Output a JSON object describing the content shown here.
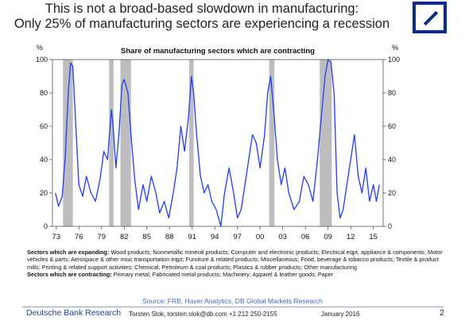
{
  "header": {
    "title_line1": "This is not a broad-based slowdown in manufacturing:",
    "title_line2": "Only 25% of manufacturing sectors are experiencing a recession"
  },
  "chart_data": {
    "type": "line",
    "title": "Share of manufacturing sectors which are contracting",
    "y_unit_left": "%",
    "y_unit_right": "%",
    "ylim": [
      0,
      100
    ],
    "yticks": [
      0,
      20,
      40,
      60,
      80,
      100
    ],
    "xlim": [
      1972.5,
      2016.3
    ],
    "xticks": [
      "73",
      "76",
      "79",
      "82",
      "85",
      "88",
      "91",
      "94",
      "97",
      "00",
      "03",
      "06",
      "09",
      "12",
      "15"
    ],
    "series_color": "#1a3cff",
    "recession_color": "#bdbdbd",
    "recessions": [
      [
        1973.9,
        1975.2
      ],
      [
        1980.0,
        1980.6
      ],
      [
        1981.5,
        1982.9
      ],
      [
        1990.6,
        1991.2
      ],
      [
        2001.2,
        2001.9
      ],
      [
        2007.9,
        2009.5
      ]
    ],
    "x": [
      1972.9,
      1973.3,
      1973.8,
      1974.2,
      1974.6,
      1974.9,
      1975.2,
      1975.6,
      1976.0,
      1976.5,
      1977.0,
      1977.6,
      1978.2,
      1978.8,
      1979.3,
      1979.8,
      1980.3,
      1980.5,
      1980.9,
      1981.3,
      1981.7,
      1982.0,
      1982.5,
      1982.9,
      1983.4,
      1983.9,
      1984.5,
      1985.0,
      1985.6,
      1986.2,
      1986.7,
      1987.3,
      1987.9,
      1988.5,
      1989.0,
      1989.5,
      1990.0,
      1990.5,
      1990.9,
      1991.2,
      1991.6,
      1992.1,
      1992.6,
      1993.1,
      1993.6,
      1994.2,
      1994.8,
      1995.3,
      1995.9,
      1996.5,
      1997.0,
      1997.5,
      1998.0,
      1998.5,
      1999.0,
      1999.5,
      2000.0,
      2000.6,
      2001.0,
      2001.4,
      2001.8,
      2002.3,
      2002.8,
      2003.3,
      2003.8,
      2004.5,
      2005.2,
      2005.8,
      2006.4,
      2007.0,
      2007.6,
      2008.1,
      2008.6,
      2009.0,
      2009.4,
      2009.8,
      2010.2,
      2010.6,
      2011.0,
      2011.5,
      2012.0,
      2012.5,
      2013.0,
      2013.5,
      2014.0,
      2014.5,
      2015.0,
      2015.4,
      2015.8
    ],
    "y": [
      20,
      12,
      18,
      42,
      80,
      98,
      96,
      60,
      25,
      18,
      30,
      20,
      15,
      28,
      45,
      40,
      70,
      62,
      35,
      55,
      85,
      88,
      80,
      55,
      28,
      10,
      25,
      15,
      30,
      20,
      8,
      15,
      5,
      20,
      35,
      60,
      45,
      65,
      90,
      80,
      55,
      30,
      20,
      25,
      15,
      10,
      0,
      20,
      35,
      20,
      5,
      10,
      25,
      40,
      55,
      50,
      35,
      55,
      80,
      90,
      70,
      40,
      25,
      35,
      20,
      10,
      15,
      30,
      25,
      15,
      40,
      65,
      90,
      100,
      98,
      80,
      20,
      5,
      10,
      25,
      40,
      55,
      30,
      20,
      35,
      15,
      25,
      15,
      25
    ]
  },
  "sectors": {
    "expanding_label": "Sectors which are expanding:",
    "expanding_text": "Wood products; Nonmetallic mineral products; Computer and electronic products; Electrical eqpt, appliance & components; Motor vehicles & parts; Aerospace & other misc transportation eqpt; Furniture & related products; Miscellaneous; Food, beverage & tobacco products; Textile & product mills; Printing & related support activities; Chemical; Petroleum & coal products; Plastics & rubber products; Other manufacturing",
    "contracting_label": "Sectors which are contracting:",
    "contracting_text": "Primary metal; Fabricated metal products; Machinery; Apparel & leather goods; Paper"
  },
  "footer": {
    "source": "Source: FRB, Haver Analytics, DB Global Markets Research",
    "brand": "Deutsche Bank Research",
    "author": "Torsten Slok, torsten.slok@db.com +1 212 250-2155",
    "date": "January 2016",
    "page": "2"
  }
}
